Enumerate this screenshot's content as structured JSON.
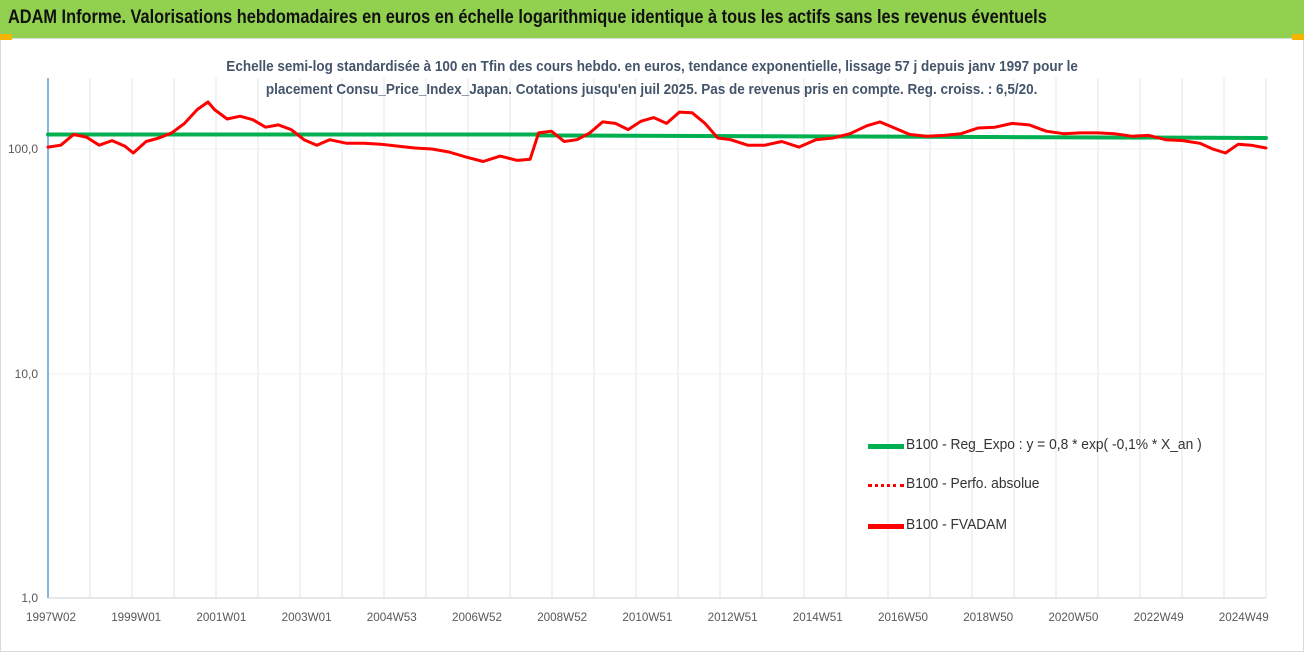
{
  "header": {
    "title": "ADAM Informe. Valorisations hebdomadaires en euros en échelle logarithmique identique à tous les actifs sans les revenus éventuels"
  },
  "chart_data": {
    "type": "line",
    "subtitle_lines": [
      "Echelle semi-log standardisée à 100 en Tfin des cours hebdo. en euros, tendance exponentielle, lissage 57 j depuis janv 1997 pour le",
      "placement Consu_Price_Index_Japan. Cotations jusqu'en juil 2025.  Pas de revenus pris en compte. Reg. croiss. : 6,5/20."
    ],
    "y_scale": "log",
    "ylim": [
      1,
      200
    ],
    "y_ticks": [
      "1,0",
      "10,0",
      "100,0"
    ],
    "x_tick_labels": [
      "1997W02",
      "1999W01",
      "2001W01",
      "2003W01",
      "2004W53",
      "2006W52",
      "2008W52",
      "2010W51",
      "2012W51",
      "2014W51",
      "2016W50",
      "2018W50",
      "2020W50",
      "2022W49",
      "2024W49"
    ],
    "x_range_years": [
      1997.0,
      2025.55
    ],
    "grid": "vertical",
    "legend_position": "right",
    "series": [
      {
        "name": "B100 - Reg_Expo : y = 0,8 * exp( -0,1% *  X_an )",
        "color": "#00B050",
        "style": "solid",
        "x": [
          1997.0,
          2008.5,
          2008.5,
          2025.55
        ],
        "y": [
          116,
          116,
          115,
          112
        ]
      },
      {
        "name": "B100 - Perfo. absolue",
        "color": "#FF0000",
        "style": "dotted",
        "x": [],
        "y": []
      },
      {
        "name": "B100 - FVADAM",
        "color": "#FF0000",
        "style": "solid",
        "x": [
          1997.0,
          1997.3,
          1997.6,
          1997.9,
          1998.2,
          1998.5,
          1998.8,
          1999.0,
          1999.3,
          1999.6,
          1999.9,
          2000.2,
          2000.5,
          2000.75,
          2000.9,
          2001.2,
          2001.5,
          2001.8,
          2002.1,
          2002.4,
          2002.7,
          2003.0,
          2003.3,
          2003.6,
          2004.0,
          2004.4,
          2004.8,
          2005.2,
          2005.6,
          2006.0,
          2006.4,
          2006.8,
          2007.2,
          2007.6,
          2008.0,
          2008.3,
          2008.5,
          2008.8,
          2009.1,
          2009.4,
          2009.7,
          2010.0,
          2010.3,
          2010.6,
          2010.9,
          2011.2,
          2011.5,
          2011.8,
          2012.1,
          2012.4,
          2012.7,
          2013.0,
          2013.4,
          2013.8,
          2014.2,
          2014.6,
          2015.0,
          2015.4,
          2015.8,
          2016.2,
          2016.5,
          2016.8,
          2017.2,
          2017.6,
          2018.0,
          2018.4,
          2018.8,
          2019.2,
          2019.6,
          2020.0,
          2020.4,
          2020.8,
          2021.2,
          2021.6,
          2022.0,
          2022.4,
          2022.8,
          2023.2,
          2023.6,
          2024.0,
          2024.3,
          2024.6,
          2024.9,
          2025.2,
          2025.55
        ],
        "y": [
          102,
          104,
          116,
          113,
          104,
          109,
          103,
          96,
          108,
          112,
          118,
          130,
          150,
          162,
          150,
          136,
          140,
          135,
          125,
          128,
          122,
          110,
          104,
          110,
          106,
          106,
          105,
          103,
          101,
          100,
          97,
          92,
          88,
          93,
          89,
          90,
          118,
          120,
          108,
          110,
          118,
          132,
          130,
          122,
          133,
          138,
          130,
          146,
          145,
          130,
          112,
          110,
          104,
          104,
          108,
          102,
          110,
          112,
          117,
          127,
          132,
          125,
          116,
          114,
          115,
          117,
          124,
          125,
          130,
          128,
          120,
          117,
          118,
          118,
          117,
          114,
          115,
          110,
          109,
          106,
          100,
          96,
          105,
          104,
          101
        ]
      }
    ]
  }
}
